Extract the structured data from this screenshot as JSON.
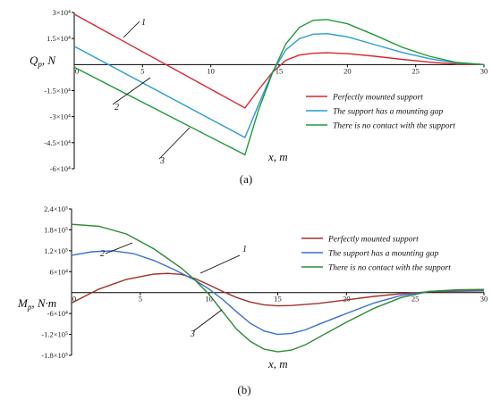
{
  "chart_data": [
    {
      "id": "a",
      "type": "line",
      "panel_label": "(a)",
      "xlabel": "x, m",
      "ylabel": "Q_p, N",
      "xlim": [
        0,
        30
      ],
      "ylim": [
        -60000,
        30000
      ],
      "x_ticks": [
        0,
        5,
        10,
        15,
        20,
        25,
        30
      ],
      "y_ticks": [
        {
          "v": 30000,
          "label": "3×10⁴"
        },
        {
          "v": 15000,
          "label": "1.5×10⁴"
        },
        {
          "v": -15000,
          "label": "-1.5×10⁴"
        },
        {
          "v": -30000,
          "label": "-3×10⁴"
        },
        {
          "v": -45000,
          "label": "-4.5×10⁴"
        },
        {
          "v": -60000,
          "label": "-6×10⁴"
        }
      ],
      "legend_position": "right",
      "series": [
        {
          "name": "Perfectly mounted support",
          "curve_label": "1",
          "color": "#d8262e",
          "points": [
            [
              0,
              29000
            ],
            [
              12.5,
              -25000
            ],
            [
              13.5,
              -14500
            ],
            [
              14.5,
              -4500
            ],
            [
              15.5,
              2500
            ],
            [
              16.5,
              5500
            ],
            [
              17.5,
              6500
            ],
            [
              18.5,
              6800
            ],
            [
              20,
              6300
            ],
            [
              22,
              4800
            ],
            [
              24,
              3000
            ],
            [
              26,
              1400
            ],
            [
              28,
              300
            ],
            [
              30,
              0
            ]
          ]
        },
        {
          "name": "The support has a mounting gap",
          "curve_label": "2",
          "color": "#2a9cd4",
          "points": [
            [
              0,
              10500
            ],
            [
              12.5,
              -42000
            ],
            [
              13.5,
              -23000
            ],
            [
              14.5,
              -4500
            ],
            [
              15.5,
              8500
            ],
            [
              16.5,
              15000
            ],
            [
              17.5,
              17500
            ],
            [
              18.5,
              17800
            ],
            [
              20,
              16000
            ],
            [
              22,
              11500
            ],
            [
              24,
              7000
            ],
            [
              26,
              3400
            ],
            [
              28,
              900
            ],
            [
              30,
              0
            ]
          ]
        },
        {
          "name": "There is no contact with the support",
          "curve_label": "3",
          "color": "#1e9a3a",
          "points": [
            [
              0,
              -1500
            ],
            [
              12.5,
              -52000
            ],
            [
              13.5,
              -26000
            ],
            [
              14.5,
              -5000
            ],
            [
              15.5,
              12000
            ],
            [
              16.5,
              21500
            ],
            [
              17.5,
              25500
            ],
            [
              18.5,
              26000
            ],
            [
              20,
              23500
            ],
            [
              22,
              17000
            ],
            [
              24,
              10000
            ],
            [
              26,
              4800
            ],
            [
              28,
              1200
            ],
            [
              30,
              0
            ]
          ]
        }
      ]
    },
    {
      "id": "b",
      "type": "line",
      "panel_label": "(b)",
      "xlabel": "x, m",
      "ylabel": "M_p, N·m",
      "xlim": [
        0,
        30
      ],
      "ylim": [
        -180000,
        240000
      ],
      "x_ticks": [
        0,
        5,
        10,
        15,
        20,
        25,
        30
      ],
      "y_ticks": [
        {
          "v": 240000,
          "label": "2.4×10⁵"
        },
        {
          "v": 180000,
          "label": "1.8×10⁵"
        },
        {
          "v": 120000,
          "label": "1.2×10⁵"
        },
        {
          "v": 60000,
          "label": "6×10⁴"
        },
        {
          "v": -60000,
          "label": "-6×10⁴"
        },
        {
          "v": -120000,
          "label": "-1.2×10⁵"
        },
        {
          "v": -180000,
          "label": "-1.8×10⁵"
        }
      ],
      "legend_position": "right",
      "series": [
        {
          "name": "Perfectly mounted support",
          "curve_label": "1",
          "color": "#a0302a",
          "points": [
            [
              0,
              -30000
            ],
            [
              2,
              10000
            ],
            [
              4,
              38000
            ],
            [
              6,
              53000
            ],
            [
              7,
              55000
            ],
            [
              8,
              52000
            ],
            [
              9,
              40000
            ],
            [
              10,
              22000
            ],
            [
              11,
              3000
            ],
            [
              12,
              -14000
            ],
            [
              13,
              -27000
            ],
            [
              14,
              -35000
            ],
            [
              15,
              -38000
            ],
            [
              16,
              -37000
            ],
            [
              18,
              -31000
            ],
            [
              20,
              -21000
            ],
            [
              22,
              -11000
            ],
            [
              24,
              -3000
            ],
            [
              26,
              2000
            ],
            [
              28,
              4000
            ],
            [
              30,
              5000
            ]
          ]
        },
        {
          "name": "The support has a mounting gap",
          "curve_label": "2",
          "color": "#3a6fd0",
          "points": [
            [
              0,
              107000
            ],
            [
              1.5,
              117000
            ],
            [
              3,
              120000
            ],
            [
              4.5,
              112000
            ],
            [
              6,
              92000
            ],
            [
              7.5,
              65000
            ],
            [
              9,
              35000
            ],
            [
              10,
              10000
            ],
            [
              11,
              -20000
            ],
            [
              12,
              -55000
            ],
            [
              13,
              -88000
            ],
            [
              14,
              -110000
            ],
            [
              15,
              -120000
            ],
            [
              16,
              -117000
            ],
            [
              17,
              -107000
            ],
            [
              18,
              -91000
            ],
            [
              20,
              -60000
            ],
            [
              22,
              -30000
            ],
            [
              24,
              -8000
            ],
            [
              26,
              3000
            ],
            [
              28,
              6000
            ],
            [
              30,
              7000
            ]
          ]
        },
        {
          "name": "There is no contact with the support",
          "curve_label": "3",
          "color": "#2b8a35",
          "points": [
            [
              0,
              196000
            ],
            [
              2,
              190000
            ],
            [
              4,
              168000
            ],
            [
              6,
              125000
            ],
            [
              8,
              70000
            ],
            [
              9,
              35000
            ],
            [
              10,
              -5000
            ],
            [
              11,
              -55000
            ],
            [
              12,
              -105000
            ],
            [
              13,
              -140000
            ],
            [
              14,
              -162000
            ],
            [
              15,
              -170000
            ],
            [
              16,
              -165000
            ],
            [
              17,
              -150000
            ],
            [
              18,
              -128000
            ],
            [
              20,
              -85000
            ],
            [
              22,
              -45000
            ],
            [
              24,
              -14000
            ],
            [
              26,
              3000
            ],
            [
              28,
              8000
            ],
            [
              30,
              9000
            ]
          ]
        }
      ]
    }
  ]
}
